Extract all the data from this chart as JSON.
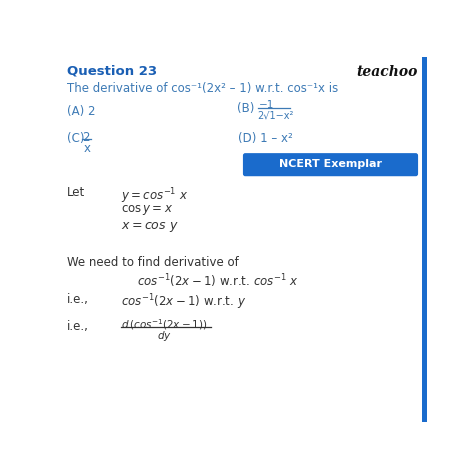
{
  "title": "Question 23",
  "brand": "teachoo",
  "question": "The derivative of cos⁻¹(2x² – 1) w.r.t. cos⁻¹x is",
  "bg_color": "#ffffff",
  "title_color": "#1a5fb4",
  "brand_color": "#111111",
  "blue_color": "#3d7ab5",
  "text_color": "#333333",
  "ncert_bg": "#1a6bcc",
  "ncert_text": "#ffffff",
  "right_bar_color": "#1a6bcc",
  "optA": "(A) 2",
  "optB_pre": "(B)",
  "optB_num": "−1",
  "optB_den": "2√1−x²",
  "optC_pre": "(C)",
  "optC_num": "2",
  "optC_den": "x",
  "optD": "(D) 1 – x²",
  "ncert_label": "NCERT Exemplar"
}
